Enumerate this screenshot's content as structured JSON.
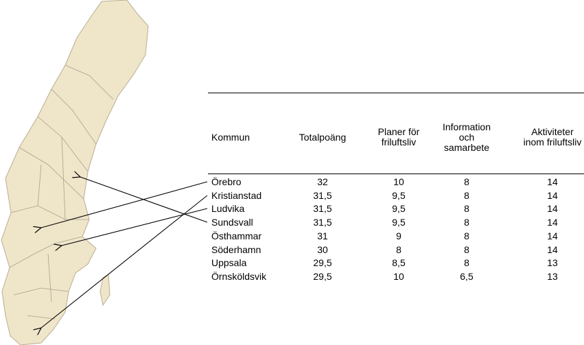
{
  "table": {
    "header": [
      [
        "Kommun"
      ],
      [
        "Totalpoäng"
      ],
      [
        "Planer för",
        "friluftsliv"
      ],
      [
        "Information",
        "och",
        "samarbete"
      ],
      [
        "Aktiviteter",
        "inom friluftsliv"
      ]
    ],
    "rows": [
      [
        "Örebro",
        "32",
        "10",
        "8",
        "14"
      ],
      [
        "Kristianstad",
        "31,5",
        "9,5",
        "8",
        "14"
      ],
      [
        "Ludvika",
        "31,5",
        "9,5",
        "8",
        "14"
      ],
      [
        "Sundsvall",
        "31,5",
        "9,5",
        "8",
        "14"
      ],
      [
        "Östhammar",
        "31",
        "9",
        "8",
        "14"
      ],
      [
        "Söderhamn",
        "30",
        "8",
        "8",
        "14"
      ],
      [
        "Uppsala",
        "29,5",
        "8,5",
        "8",
        "13"
      ],
      [
        "Örnsköldsvik",
        "29,5",
        "10",
        "6,5",
        "13"
      ]
    ]
  }
}
